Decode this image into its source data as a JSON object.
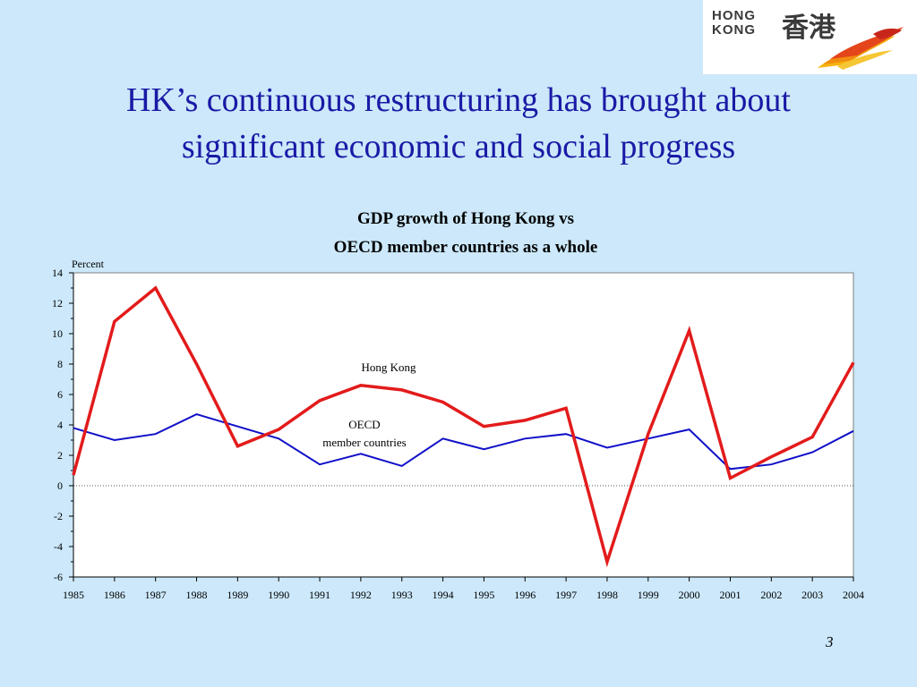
{
  "slide": {
    "title_line1": "HK’s continuous restructuring has brought about",
    "title_line2": "significant economic and social progress",
    "page_number": "3"
  },
  "logo": {
    "text_line1": "HONG",
    "text_line2": "KONG",
    "chinese": "香港"
  },
  "colors": {
    "background": "#cce8fa",
    "title": "#1a1aa6",
    "hong_kong_series": "#e31b1b",
    "oecd_series": "#1010c8"
  },
  "chart_data": {
    "type": "line",
    "title_line1": "GDP growth of Hong Kong vs",
    "title_line2": "OECD member countries as a whole",
    "ylabel": "Percent",
    "ylim": [
      -6,
      14
    ],
    "yticks": [
      "14",
      "12",
      "10",
      "8",
      "6",
      "4",
      "2",
      "0",
      "-2",
      "-4",
      "-6"
    ],
    "x": [
      "1985",
      "1986",
      "1987",
      "1988",
      "1989",
      "1990",
      "1991",
      "1992",
      "1993",
      "1994",
      "1995",
      "1996",
      "1997",
      "1998",
      "1999",
      "2000",
      "2001",
      "2002",
      "2003",
      "2004"
    ],
    "zero_line": "dotted",
    "series": [
      {
        "name": "Hong Kong",
        "color": "#e31b1b",
        "values": [
          0.7,
          10.8,
          13.0,
          8.0,
          2.6,
          3.7,
          5.6,
          6.6,
          6.3,
          5.5,
          3.9,
          4.3,
          5.1,
          -5.0,
          3.4,
          10.2,
          0.5,
          1.9,
          3.2,
          8.1
        ]
      },
      {
        "name": "OECD member countries",
        "label_line1": "OECD",
        "label_line2": "member countries",
        "color": "#1010c8",
        "values": [
          3.8,
          3.0,
          3.4,
          4.7,
          3.9,
          3.1,
          1.4,
          2.1,
          1.3,
          3.1,
          2.4,
          3.1,
          3.4,
          2.5,
          3.1,
          3.7,
          1.1,
          1.4,
          2.2,
          3.6
        ]
      }
    ],
    "annotations": [
      {
        "text": "Hong Kong"
      },
      {
        "text_line1": "OECD",
        "text_line2": "member countries"
      }
    ]
  }
}
